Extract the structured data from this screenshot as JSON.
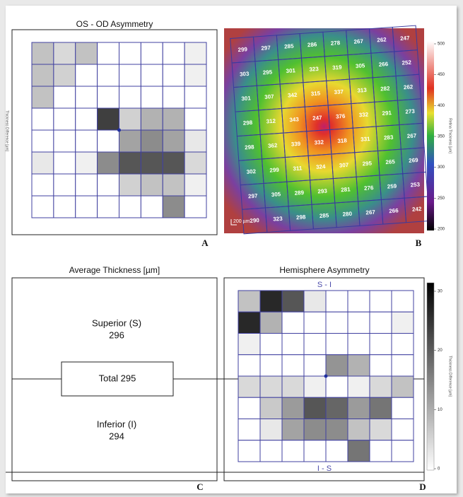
{
  "panels": {
    "a": {
      "title": "OS - OD Asymmetry",
      "axis_label": "Thickness Difference [µm]",
      "letter": "A",
      "cells": [
        [
          8,
          5,
          8,
          0,
          0,
          0,
          0,
          2
        ],
        [
          8,
          6,
          0,
          0,
          0,
          0,
          0,
          2
        ],
        [
          8,
          0,
          0,
          0,
          0,
          0,
          0,
          0
        ],
        [
          0,
          0,
          0,
          25,
          6,
          10,
          10,
          0
        ],
        [
          0,
          0,
          0,
          0,
          12,
          15,
          12,
          3
        ],
        [
          3,
          0,
          2,
          15,
          22,
          22,
          22,
          5
        ],
        [
          0,
          0,
          0,
          0,
          6,
          8,
          8,
          2
        ],
        [
          0,
          0,
          0,
          0,
          0,
          0,
          15,
          0
        ]
      ]
    },
    "b": {
      "letter": "B",
      "scale_label": "200 µm",
      "colorbar_label": "Retina Thickness [µm]",
      "colorbar_lim": [
        200,
        500
      ],
      "colorbar_ticks": [
        200,
        250,
        300,
        350,
        400,
        450,
        500
      ],
      "values": [
        [
          299,
          297,
          285,
          286,
          278,
          267,
          262,
          247
        ],
        [
          303,
          295,
          301,
          323,
          319,
          305,
          266,
          252
        ],
        [
          301,
          307,
          342,
          315,
          337,
          313,
          282,
          262
        ],
        [
          298,
          312,
          343,
          247,
          376,
          332,
          291,
          273
        ],
        [
          298,
          362,
          339,
          332,
          318,
          331,
          283,
          267
        ],
        [
          302,
          299,
          311,
          324,
          307,
          295,
          265,
          269
        ],
        [
          297,
          305,
          289,
          293,
          281,
          276,
          259,
          253
        ],
        [
          290,
          323,
          298,
          285,
          280,
          267,
          266,
          242
        ]
      ]
    },
    "c": {
      "title": "Average Thickness [µm]",
      "letter": "C",
      "superior_label": "Superior (S)",
      "superior_value": 296,
      "total": "Total 295",
      "inferior_label": "Inferior (I)",
      "inferior_value": 294
    },
    "d": {
      "title": "Hemisphere Asymmetry",
      "letter": "D",
      "top_label": "S - I",
      "bottom_label": "I - S",
      "colorbar_label": "Thickness Difference [µm]",
      "colorbar_lim": [
        0,
        30
      ],
      "colorbar_ticks": [
        0,
        10,
        20,
        30
      ],
      "cells": [
        [
          8,
          28,
          22,
          3,
          0,
          0,
          0,
          0
        ],
        [
          28,
          10,
          0,
          0,
          0,
          0,
          0,
          2
        ],
        [
          2,
          0,
          0,
          0,
          0,
          0,
          0,
          0
        ],
        [
          0,
          0,
          0,
          0,
          14,
          10,
          0,
          0
        ],
        [
          5,
          5,
          5,
          2,
          0,
          2,
          5,
          8
        ],
        [
          0,
          7,
          13,
          22,
          20,
          13,
          18,
          0
        ],
        [
          0,
          3,
          12,
          15,
          15,
          8,
          5,
          0
        ],
        [
          0,
          0,
          0,
          0,
          0,
          18,
          0,
          0
        ]
      ]
    }
  }
}
